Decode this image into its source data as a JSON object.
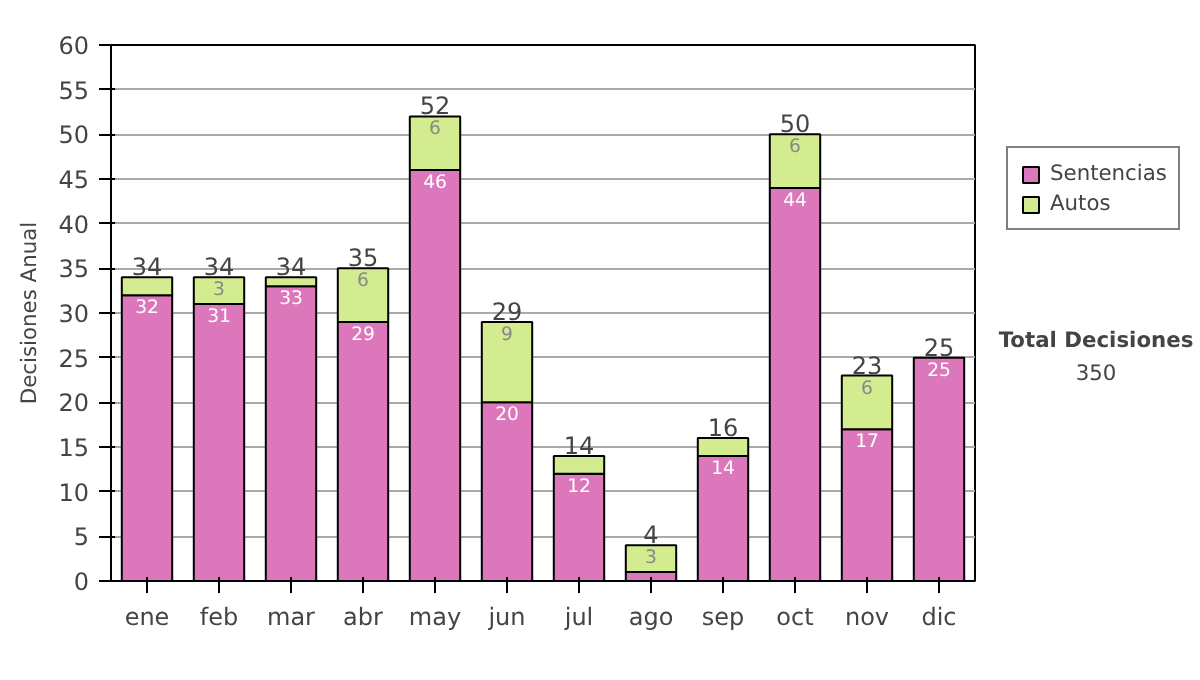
{
  "chart_data": {
    "type": "bar",
    "stacked": true,
    "ylabel": "Decisiones Anual",
    "categories": [
      "ene",
      "feb",
      "mar",
      "abr",
      "may",
      "jun",
      "jul",
      "ago",
      "sep",
      "oct",
      "nov",
      "dic"
    ],
    "series": [
      {
        "name": "Sentencias",
        "color": "#dd77bb",
        "values": [
          32,
          31,
          33,
          29,
          46,
          20,
          12,
          1,
          14,
          44,
          17,
          25
        ],
        "value_labels": [
          "32",
          "31",
          "33",
          "29",
          "46",
          "20",
          "12",
          null,
          "14",
          "44",
          "17",
          "25"
        ]
      },
      {
        "name": "Autos",
        "color": "#d4ec90",
        "values": [
          2,
          3,
          1,
          6,
          6,
          9,
          2,
          3,
          2,
          6,
          6,
          0
        ],
        "value_labels": [
          null,
          "3",
          null,
          "6",
          "6",
          "9",
          null,
          "3",
          null,
          "6",
          "6",
          null
        ]
      }
    ],
    "totals": [
      "34",
      "34",
      "34",
      "35",
      "52",
      "29",
      "14",
      "4",
      "16",
      "50",
      "23",
      "25"
    ],
    "ylim": [
      0,
      60
    ],
    "yticks": [
      0,
      5,
      10,
      15,
      20,
      25,
      30,
      35,
      40,
      45,
      50,
      55,
      60
    ],
    "grid": "y",
    "legend": "right",
    "annotations": [
      "Total Decisiones",
      "350"
    ]
  }
}
